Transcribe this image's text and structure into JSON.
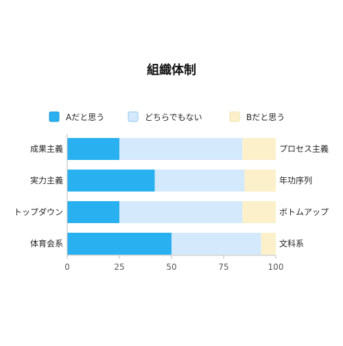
{
  "chart_data": {
    "type": "bar",
    "orientation": "horizontal",
    "stacked": true,
    "title": "組織体制",
    "categories_left": [
      "成果主義",
      "実力主義",
      "トップダウン",
      "体育会系"
    ],
    "categories_right": [
      "プロセス主義",
      "年功序列",
      "ボトムアップ",
      "文科系"
    ],
    "series": [
      {
        "name": "Aだと思う",
        "color": "#29b0f0",
        "values": [
          25,
          42,
          25,
          50
        ]
      },
      {
        "name": "どちらでもない",
        "color": "#d4e9fb",
        "values": [
          59,
          43,
          59,
          43
        ]
      },
      {
        "name": "Bだと思う",
        "color": "#fbf0c9",
        "values": [
          16,
          15,
          16,
          7
        ]
      }
    ],
    "xlim": [
      0,
      100
    ],
    "xticks": [
      "0",
      "25",
      "50",
      "75",
      "100"
    ],
    "legend_position": "top",
    "grid": false
  }
}
